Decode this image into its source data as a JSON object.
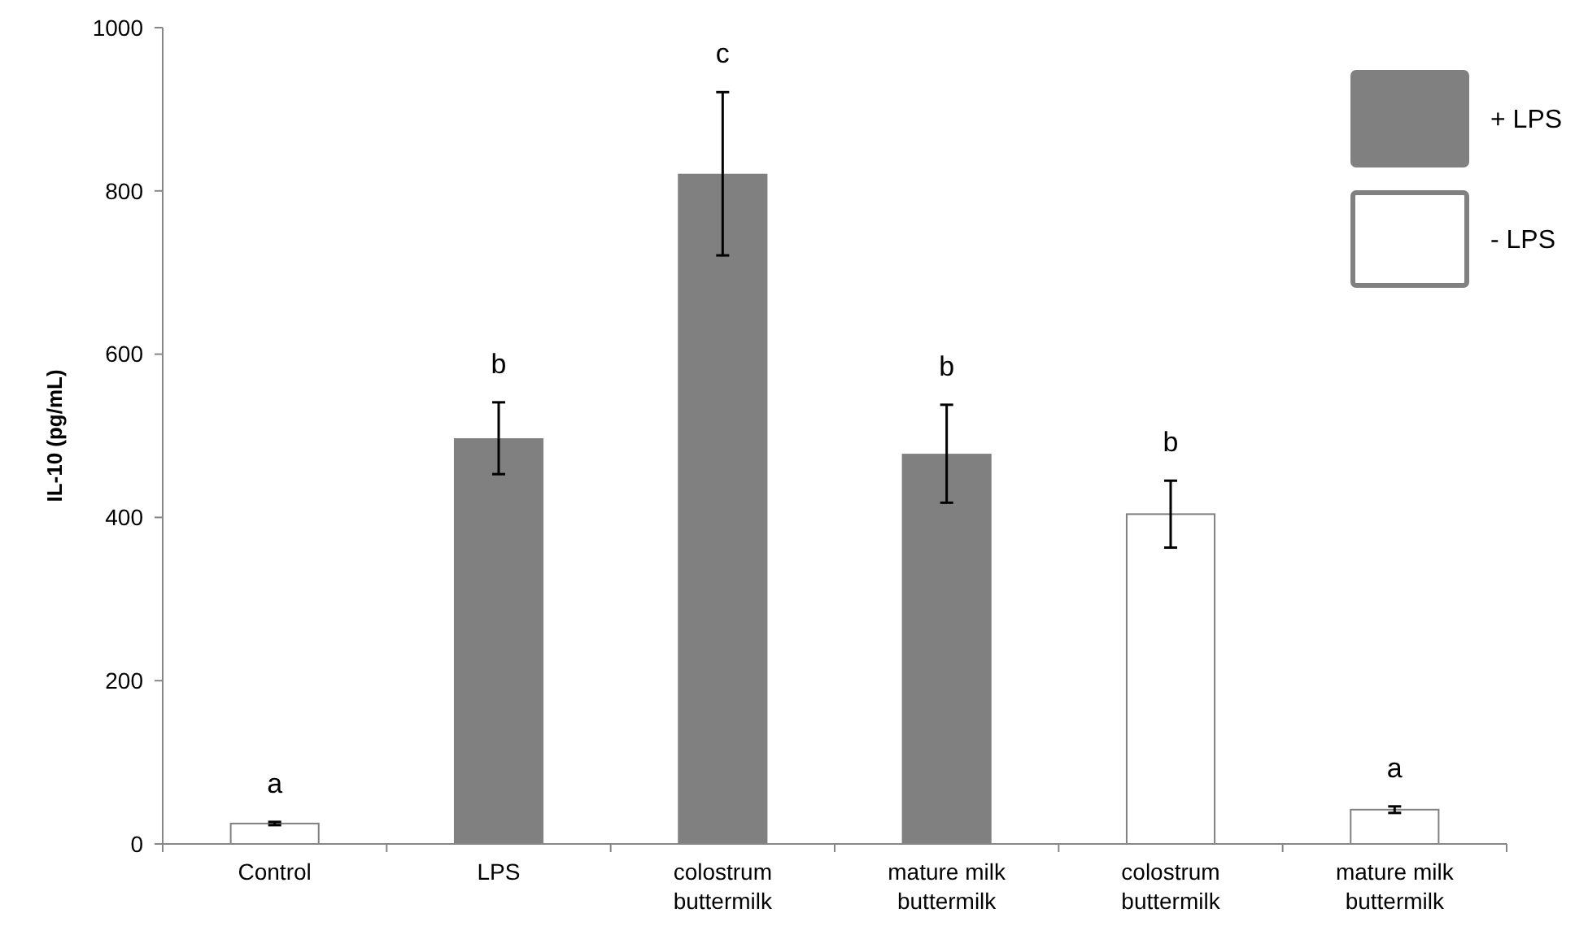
{
  "chart_data": {
    "type": "bar",
    "ylabel": "IL-10 (pg/mL)",
    "categories": [
      "Control",
      "LPS",
      "colostrum buttermilk",
      "mature milk buttermilk",
      "colostrum buttermilk",
      "mature milk buttermilk"
    ],
    "series": [
      {
        "name": "+ LPS",
        "color": "#808080",
        "values": [
          null,
          497,
          821,
          478,
          null,
          null
        ],
        "errors": [
          null,
          44,
          100,
          60,
          null,
          null
        ]
      },
      {
        "name": "- LPS",
        "color": "#ffffff",
        "values": [
          25,
          null,
          null,
          null,
          404,
          42
        ],
        "errors": [
          2,
          null,
          null,
          null,
          41,
          4
        ]
      }
    ],
    "ylim": [
      0,
      1000
    ],
    "yticks": [
      0,
      200,
      400,
      600,
      800,
      1000
    ],
    "grid": false,
    "legend": "top right",
    "annotations": [
      "a",
      "b",
      "c",
      "b",
      "b",
      "a"
    ]
  }
}
